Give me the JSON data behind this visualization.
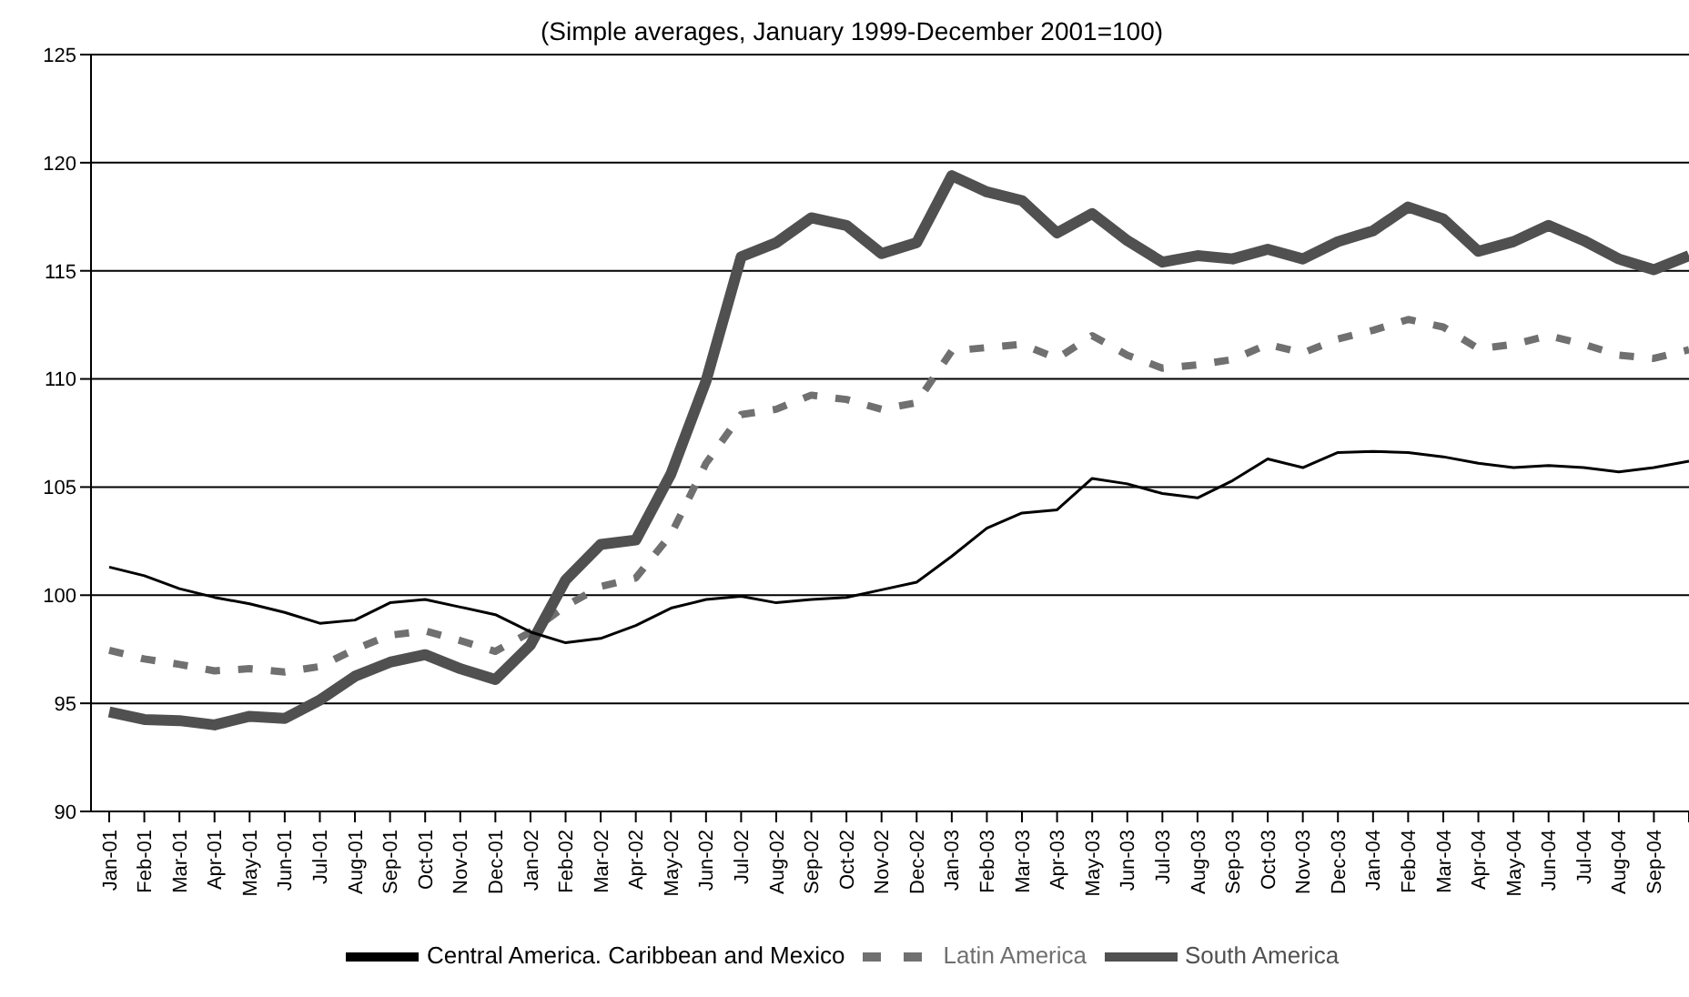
{
  "chart_data": {
    "type": "line",
    "subtitle": "(Simple averages, January 1999-December 2001=100)",
    "categories": [
      "Jan-01",
      "Feb-01",
      "Mar-01",
      "Apr-01",
      "May-01",
      "Jun-01",
      "Jul-01",
      "Aug-01",
      "Sep-01",
      "Oct-01",
      "Nov-01",
      "Dec-01",
      "Jan-02",
      "Feb-02",
      "Mar-02",
      "Apr-02",
      "May-02",
      "Jun-02",
      "Jul-02",
      "Aug-02",
      "Sep-02",
      "Oct-02",
      "Nov-02",
      "Dec-02",
      "Jan-03",
      "Feb-03",
      "Mar-03",
      "Apr-03",
      "May-03",
      "Jun-03",
      "Jul-03",
      "Aug-03",
      "Sep-03",
      "Oct-03",
      "Nov-03",
      "Dec-03",
      "Jan-04",
      "Feb-04",
      "Mar-04",
      "Apr-04",
      "May-04",
      "Jun-04",
      "Jul-04",
      "Aug-04",
      "Sep-04",
      null
    ],
    "series": [
      {
        "name": "Latin America",
        "color": "#707070",
        "line_style": "dashed",
        "values": [
          97.45,
          97.05,
          96.8,
          96.5,
          96.6,
          96.45,
          96.7,
          97.5,
          98.15,
          98.35,
          97.9,
          97.4,
          98.3,
          99.5,
          100.4,
          100.8,
          102.8,
          106.1,
          108.35,
          108.6,
          109.25,
          109.05,
          108.6,
          108.9,
          111.3,
          111.45,
          111.6,
          110.95,
          112.0,
          111.1,
          110.5,
          110.65,
          110.9,
          111.6,
          111.2,
          111.85,
          112.25,
          112.75,
          112.4,
          111.4,
          111.6,
          112.0,
          111.6,
          111.1,
          110.95,
          111.35
        ]
      },
      {
        "name": "South America",
        "color": "#505050",
        "line_style": "solid",
        "values": [
          94.6,
          94.25,
          94.2,
          94.0,
          94.4,
          94.3,
          95.15,
          96.25,
          96.9,
          97.25,
          96.6,
          96.1,
          97.7,
          100.7,
          102.35,
          102.55,
          105.6,
          109.9,
          115.65,
          116.3,
          117.45,
          117.1,
          115.8,
          116.3,
          119.4,
          118.65,
          118.25,
          116.75,
          117.65,
          116.4,
          115.4,
          115.7,
          115.55,
          116.0,
          115.55,
          116.35,
          116.85,
          117.95,
          117.4,
          115.9,
          116.35,
          117.1,
          116.4,
          115.55,
          115.05,
          115.7
        ]
      },
      {
        "name": "Central America. Caribbean and Mexico",
        "color": "#000000",
        "line_style": "solid",
        "values": [
          101.3,
          100.9,
          100.3,
          99.9,
          99.6,
          99.2,
          98.7,
          98.85,
          99.65,
          99.8,
          99.45,
          99.1,
          98.3,
          97.8,
          98.0,
          98.6,
          99.4,
          99.8,
          99.95,
          99.65,
          99.8,
          99.9,
          100.25,
          100.6,
          101.8,
          103.1,
          103.8,
          103.95,
          105.4,
          105.15,
          104.7,
          104.5,
          105.3,
          106.3,
          105.9,
          106.6,
          106.65,
          106.6,
          106.4,
          106.1,
          105.9,
          106.0,
          105.9,
          105.7,
          105.9,
          106.2
        ]
      }
    ],
    "ylim": [
      90,
      125
    ],
    "yticks": [
      90,
      95,
      100,
      105,
      110,
      115,
      120,
      125
    ],
    "grid": "y",
    "legend": "bottom",
    "marker": "none"
  }
}
